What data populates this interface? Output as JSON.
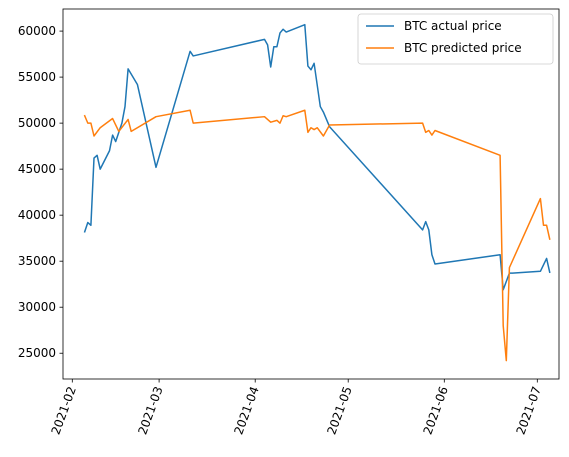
{
  "chart_data": {
    "type": "line",
    "title": "",
    "xlabel": "",
    "ylabel": "",
    "xlim": [
      "2021-01-29",
      "2021-07-08"
    ],
    "ylim": [
      22200,
      62400
    ],
    "x_ticks": [
      "2021-02-01",
      "2021-03-01",
      "2021-04-01",
      "2021-05-01",
      "2021-06-01",
      "2021-07-01"
    ],
    "x_tick_labels": [
      "2021-02",
      "2021-03",
      "2021-04",
      "2021-05",
      "2021-06",
      "2021-07"
    ],
    "y_ticks": [
      25000,
      30000,
      35000,
      40000,
      45000,
      50000,
      55000,
      60000
    ],
    "y_tick_labels": [
      "25000",
      "30000",
      "35000",
      "40000",
      "45000",
      "50000",
      "55000",
      "60000"
    ],
    "grid": false,
    "legend_position": "top-right",
    "series": [
      {
        "name": "BTC actual price",
        "color": "#1f77b4",
        "points": [
          [
            "2021-02-05",
            38200
          ],
          [
            "2021-02-06",
            39200
          ],
          [
            "2021-02-07",
            38900
          ],
          [
            "2021-02-08",
            46200
          ],
          [
            "2021-02-09",
            46500
          ],
          [
            "2021-02-10",
            45000
          ],
          [
            "2021-02-13",
            47000
          ],
          [
            "2021-02-14",
            48700
          ],
          [
            "2021-02-15",
            48000
          ],
          [
            "2021-02-17",
            50000
          ],
          [
            "2021-02-18",
            51800
          ],
          [
            "2021-02-19",
            55900
          ],
          [
            "2021-02-22",
            54200
          ],
          [
            "2021-02-28",
            45200
          ],
          [
            "2021-03-11",
            57800
          ],
          [
            "2021-03-12",
            57300
          ],
          [
            "2021-04-04",
            59100
          ],
          [
            "2021-04-05",
            58500
          ],
          [
            "2021-04-06",
            56100
          ],
          [
            "2021-04-07",
            58300
          ],
          [
            "2021-04-08",
            58300
          ],
          [
            "2021-04-09",
            59800
          ],
          [
            "2021-04-10",
            60200
          ],
          [
            "2021-04-11",
            59900
          ],
          [
            "2021-04-17",
            60700
          ],
          [
            "2021-04-18",
            56200
          ],
          [
            "2021-04-19",
            55800
          ],
          [
            "2021-04-20",
            56500
          ],
          [
            "2021-04-22",
            51800
          ],
          [
            "2021-04-23",
            51200
          ],
          [
            "2021-04-25",
            49600
          ],
          [
            "2021-05-25",
            38400
          ],
          [
            "2021-05-26",
            39300
          ],
          [
            "2021-05-27",
            38400
          ],
          [
            "2021-05-28",
            35700
          ],
          [
            "2021-05-29",
            34700
          ],
          [
            "2021-06-19",
            35700
          ],
          [
            "2021-06-20",
            31900
          ],
          [
            "2021-06-22",
            33700
          ],
          [
            "2021-06-23",
            33700
          ],
          [
            "2021-07-02",
            33900
          ],
          [
            "2021-07-04",
            35300
          ],
          [
            "2021-07-05",
            33800
          ]
        ]
      },
      {
        "name": "BTC predicted price",
        "color": "#ff7f0e",
        "points": [
          [
            "2021-02-05",
            50800
          ],
          [
            "2021-02-06",
            50000
          ],
          [
            "2021-02-07",
            50000
          ],
          [
            "2021-02-08",
            48600
          ],
          [
            "2021-02-10",
            49500
          ],
          [
            "2021-02-14",
            50500
          ],
          [
            "2021-02-16",
            49100
          ],
          [
            "2021-02-19",
            50400
          ],
          [
            "2021-02-20",
            49100
          ],
          [
            "2021-02-28",
            50700
          ],
          [
            "2021-03-11",
            51400
          ],
          [
            "2021-03-12",
            50000
          ],
          [
            "2021-04-04",
            50700
          ],
          [
            "2021-04-06",
            50100
          ],
          [
            "2021-04-08",
            50300
          ],
          [
            "2021-04-09",
            50000
          ],
          [
            "2021-04-10",
            50800
          ],
          [
            "2021-04-11",
            50700
          ],
          [
            "2021-04-17",
            51400
          ],
          [
            "2021-04-18",
            49000
          ],
          [
            "2021-04-19",
            49500
          ],
          [
            "2021-04-20",
            49300
          ],
          [
            "2021-04-21",
            49500
          ],
          [
            "2021-04-23",
            48600
          ],
          [
            "2021-04-25",
            49800
          ],
          [
            "2021-05-25",
            50000
          ],
          [
            "2021-05-26",
            49000
          ],
          [
            "2021-05-27",
            49200
          ],
          [
            "2021-05-28",
            48700
          ],
          [
            "2021-05-29",
            49200
          ],
          [
            "2021-06-19",
            46500
          ],
          [
            "2021-06-20",
            28000
          ],
          [
            "2021-06-21",
            24200
          ],
          [
            "2021-06-22",
            34300
          ],
          [
            "2021-07-02",
            41800
          ],
          [
            "2021-07-03",
            38900
          ],
          [
            "2021-07-04",
            38900
          ],
          [
            "2021-07-05",
            37400
          ]
        ]
      }
    ]
  }
}
